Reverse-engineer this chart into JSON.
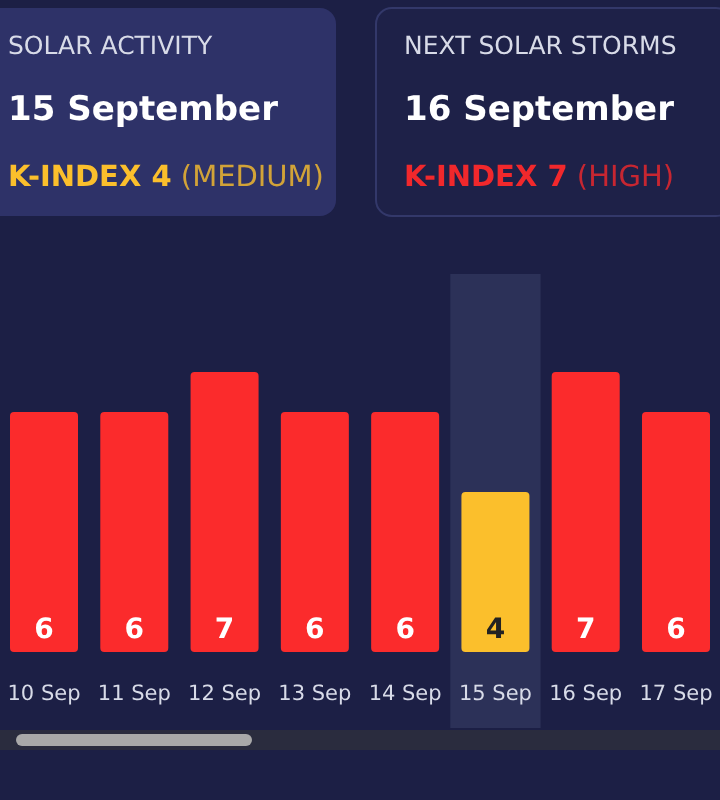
{
  "chart_data": [
    {
      "type": "other",
      "title": "SOLAR ACTIVITY",
      "subtitle": "15 September",
      "color": "#fbbf2c",
      "annotations": [
        "K-INDEX 4",
        "(MEDIUM)"
      ]
    },
    {
      "type": "other",
      "title": "NEXT SOLAR STORMS",
      "subtitle": "16 September",
      "color": "#f1282c",
      "annotations": [
        "K-INDEX 7",
        "(HIGH)"
      ]
    },
    {
      "type": "bar",
      "categories": [
        "10 Sep",
        "11 Sep",
        "12 Sep",
        "13 Sep",
        "14 Sep",
        "15 Sep",
        "16 Sep",
        "17 Sep"
      ],
      "values": [
        6,
        6,
        7,
        6,
        6,
        4,
        7,
        6
      ],
      "colors": [
        "#fb2b2c",
        "#fb2b2c",
        "#fb2b2c",
        "#fb2b2c",
        "#fb2b2c",
        "#fbbf2c",
        "#fb2b2c",
        "#fb2b2c"
      ],
      "data_labels": true,
      "bands": [
        {
          "axis": "x",
          "from": "15 Sep",
          "to": "15 Sep",
          "color": "#2c3158"
        }
      ]
    }
  ]
}
